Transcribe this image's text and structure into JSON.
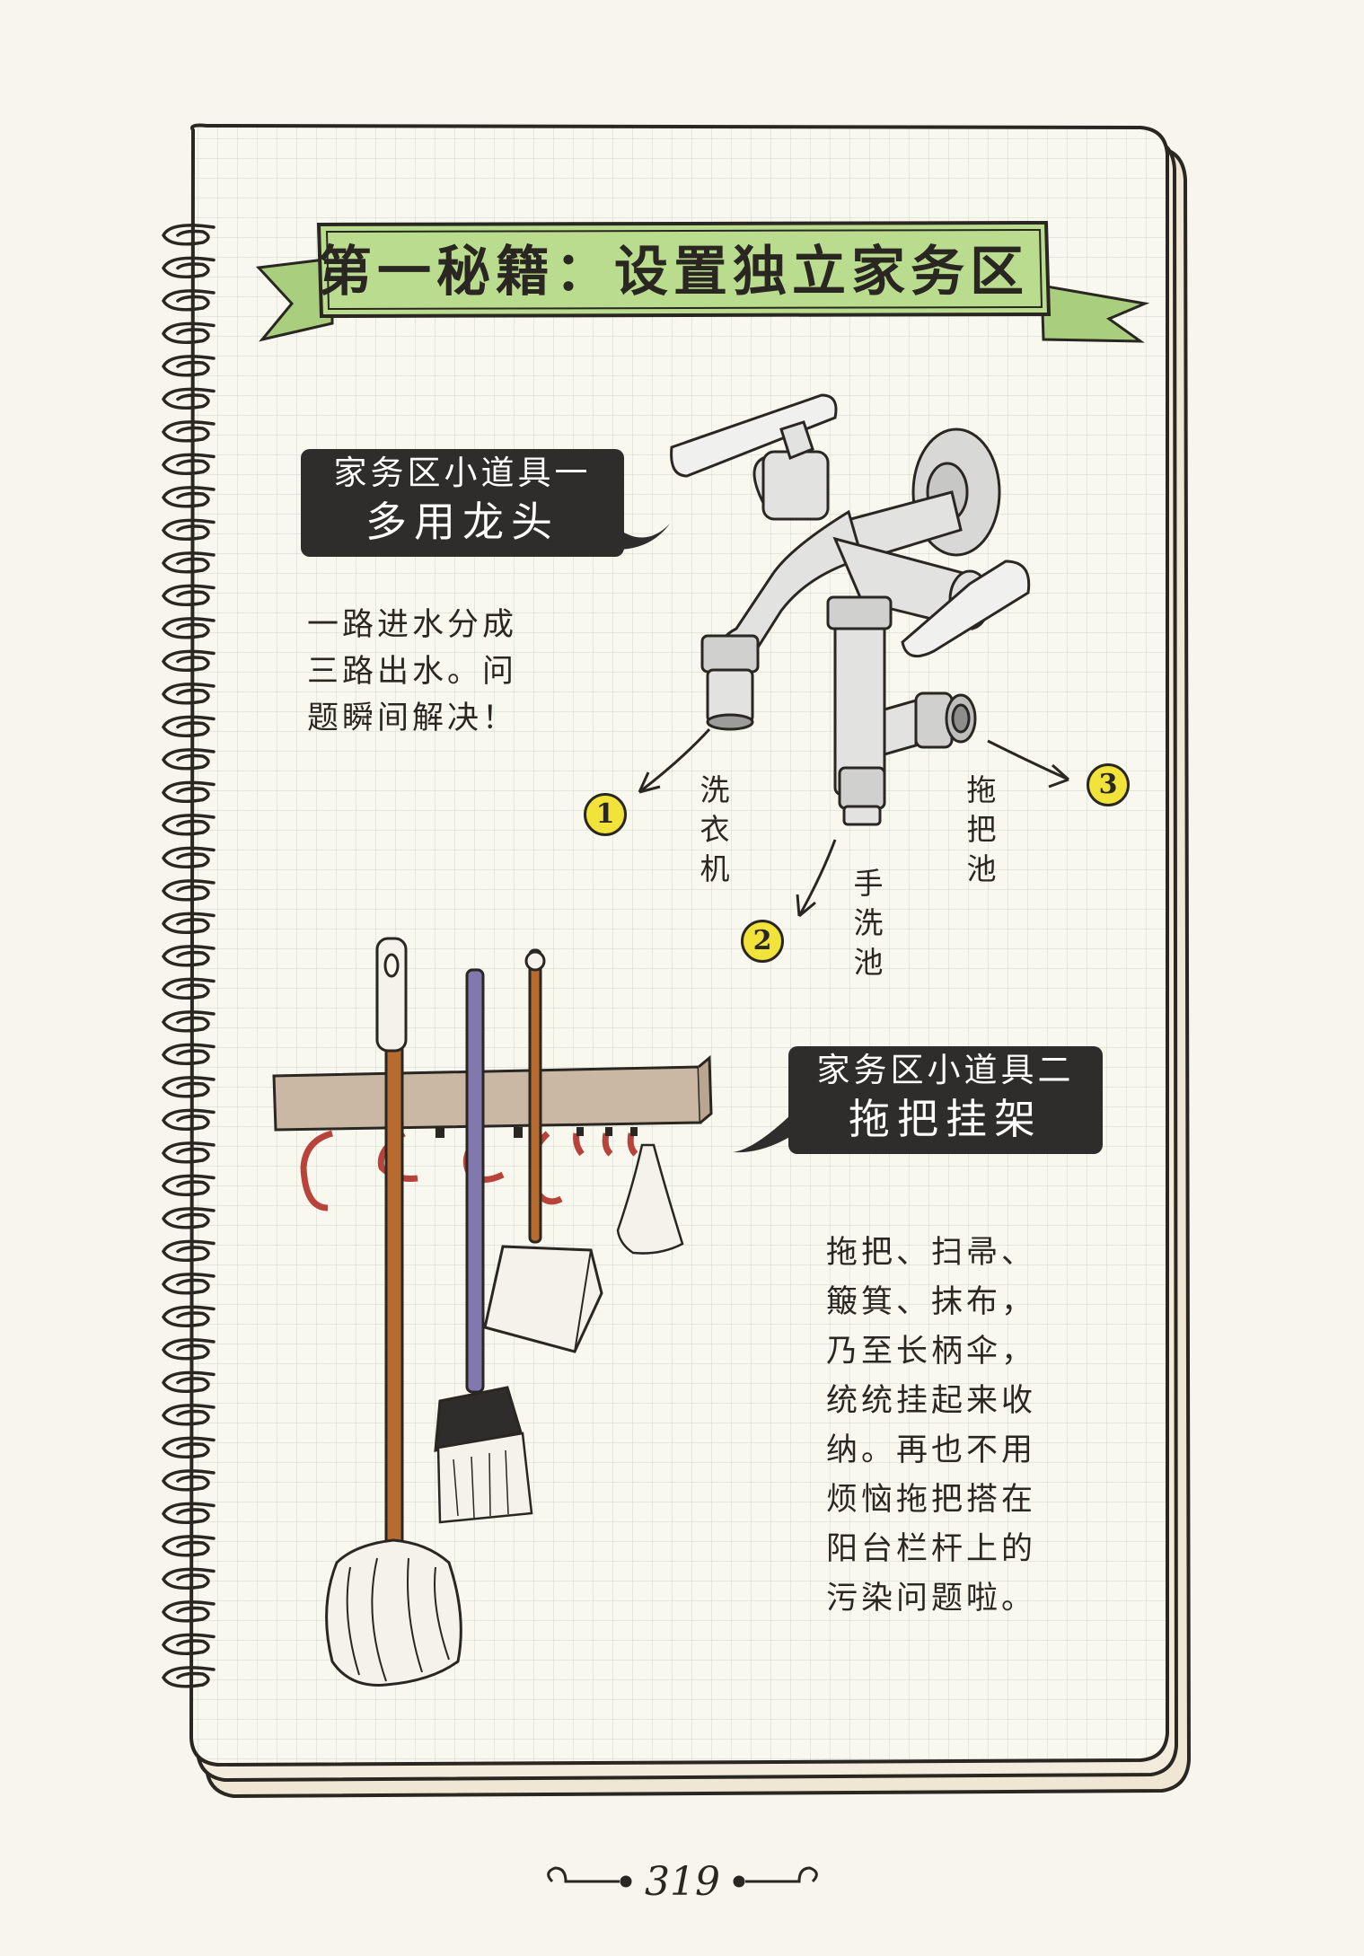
{
  "banner": {
    "title": "第一秘籍：设置独立家务区"
  },
  "tool1": {
    "tag_line1": "家务区小道具一",
    "tag_line2": "多用龙头",
    "description": [
      "一路进水分成",
      "三路出水。问",
      "题瞬间解决！"
    ],
    "outlets": [
      {
        "number": "1",
        "label": "洗衣机"
      },
      {
        "number": "2",
        "label": "手洗池"
      },
      {
        "number": "3",
        "label": "拖把池"
      }
    ]
  },
  "tool2": {
    "tag_line1": "家务区小道具二",
    "tag_line2": "拖把挂架",
    "description": [
      "拖把、扫帚、",
      "簸箕、抹布，",
      "乃至长柄伞，",
      "统统挂起来收",
      "纳。再也不用",
      "烦恼拖把搭在",
      "阳台栏杆上的",
      "污染问题啦。"
    ]
  },
  "page": {
    "number": "319"
  },
  "colors": {
    "paper": "#f9f8ef",
    "grid": "#cfd6cc",
    "banner": "#b9dc8e",
    "tag": "#2f2d2b",
    "badge": "#f2e33a",
    "rail": "#cbb8a4",
    "hook": "#b8433a",
    "mop_handle": "#b86b2e",
    "broom_handle": "#8178ae"
  }
}
